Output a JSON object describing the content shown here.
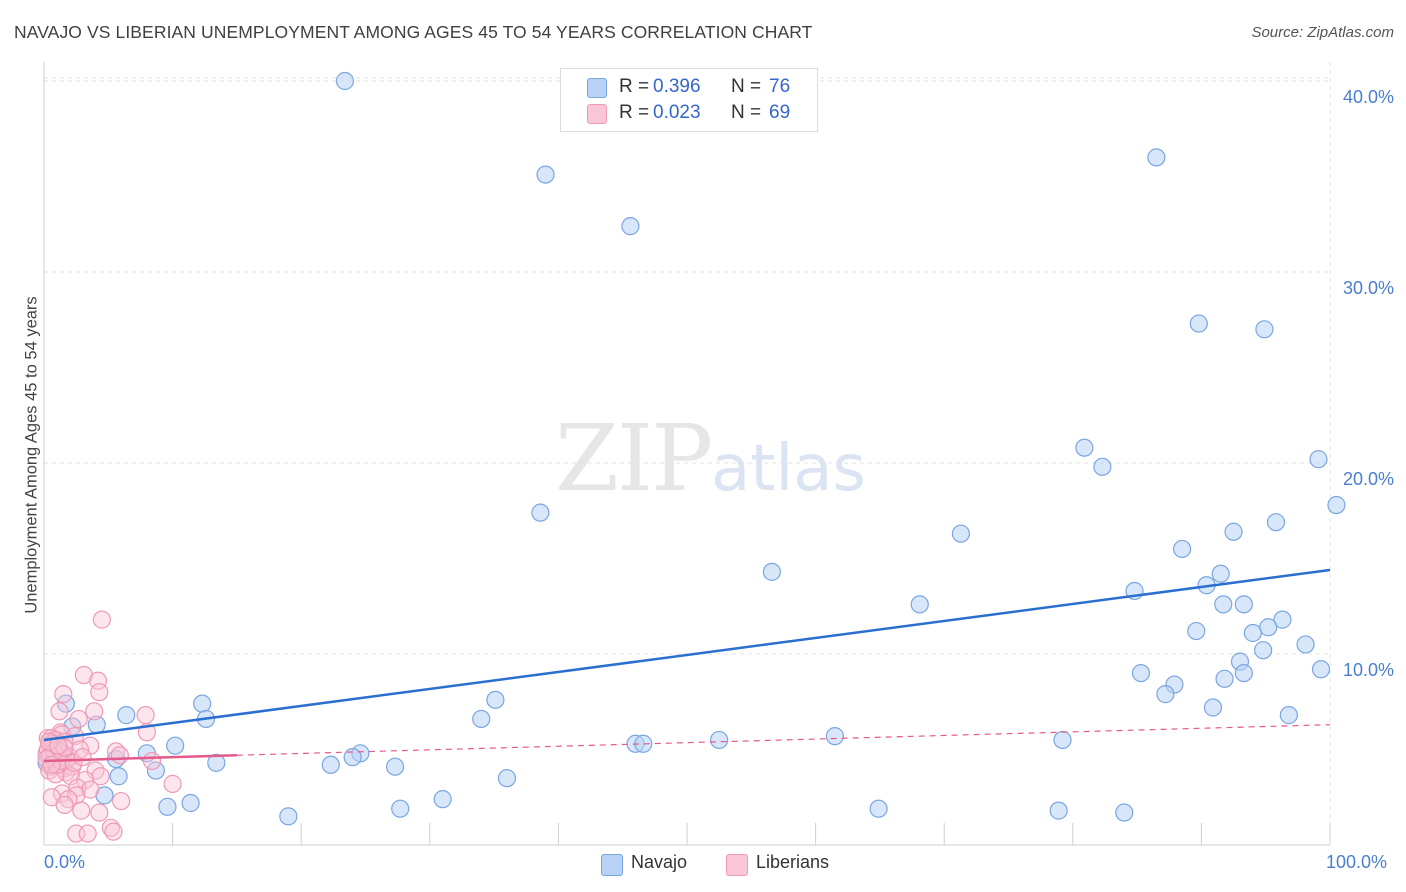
{
  "header": {
    "title": "NAVAJO VS LIBERIAN UNEMPLOYMENT AMONG AGES 45 TO 54 YEARS CORRELATION CHART",
    "source": "Source: ZipAtlas.com"
  },
  "watermark": {
    "zip": "ZIP",
    "atlas": "atlas"
  },
  "colors": {
    "navajo_fill": "#b8d2f5",
    "navajo_stroke": "#7aa6e0",
    "navajo_line": "#2a6fd0",
    "liberian_fill": "#f8c6d6",
    "liberian_stroke": "#ee9ab6",
    "liberian_line": "#e45a8a",
    "tick": "#4a7ed0"
  },
  "legend": {
    "rows": [
      {
        "r_label": "R =",
        "r_value": "0.396",
        "n_label": "N =",
        "n_value": "76"
      },
      {
        "r_label": "R =",
        "r_value": "0.023",
        "n_label": "N =",
        "n_value": "69"
      }
    ]
  },
  "bottom_legend": {
    "navajo": "Navajo",
    "liberians": "Liberians"
  },
  "axes": {
    "y_label": "Unemployment Among Ages 45 to 54 years",
    "x_min_label": "0.0%",
    "x_max_label": "100.0%",
    "y_ticks": [
      "10.0%",
      "20.0%",
      "30.0%",
      "40.0%"
    ]
  },
  "chart_data": {
    "type": "scatter",
    "title": "NAVAJO VS LIBERIAN UNEMPLOYMENT AMONG AGES 45 TO 54 YEARS CORRELATION CHART",
    "xlabel": "",
    "ylabel": "Unemployment Among Ages 45 to 54 years",
    "xlim": [
      0,
      100
    ],
    "ylim": [
      0,
      41
    ],
    "y_ticks": [
      10,
      20,
      30,
      40
    ],
    "grid": true,
    "series": [
      {
        "name": "Navajo",
        "r": 0.396,
        "n": 76,
        "trend": {
          "x": [
            0,
            100
          ],
          "y": [
            5.5,
            14.4
          ]
        },
        "points": [
          [
            23.4,
            40.0
          ],
          [
            39.0,
            35.1
          ],
          [
            45.6,
            32.4
          ],
          [
            86.5,
            36.0
          ],
          [
            89.8,
            27.3
          ],
          [
            94.9,
            27.0
          ],
          [
            80.9,
            20.8
          ],
          [
            82.3,
            19.8
          ],
          [
            99.1,
            20.2
          ],
          [
            100.5,
            17.8
          ],
          [
            38.6,
            17.4
          ],
          [
            71.3,
            16.3
          ],
          [
            95.8,
            16.9
          ],
          [
            88.5,
            15.5
          ],
          [
            92.5,
            16.4
          ],
          [
            56.6,
            14.3
          ],
          [
            91.5,
            14.2
          ],
          [
            84.8,
            13.3
          ],
          [
            90.4,
            13.6
          ],
          [
            93.3,
            12.6
          ],
          [
            91.7,
            12.6
          ],
          [
            68.1,
            12.6
          ],
          [
            96.3,
            11.8
          ],
          [
            95.2,
            11.4
          ],
          [
            89.6,
            11.2
          ],
          [
            94.0,
            11.1
          ],
          [
            98.1,
            10.5
          ],
          [
            94.8,
            10.2
          ],
          [
            93.0,
            9.6
          ],
          [
            99.3,
            9.2
          ],
          [
            85.3,
            9.0
          ],
          [
            93.3,
            9.0
          ],
          [
            91.8,
            8.7
          ],
          [
            87.9,
            8.4
          ],
          [
            87.2,
            7.9
          ],
          [
            90.9,
            7.2
          ],
          [
            96.8,
            6.8
          ],
          [
            1.7,
            7.4
          ],
          [
            12.3,
            7.4
          ],
          [
            35.1,
            7.6
          ],
          [
            6.4,
            6.8
          ],
          [
            12.6,
            6.6
          ],
          [
            34.0,
            6.6
          ],
          [
            4.1,
            6.3
          ],
          [
            2.2,
            6.2
          ],
          [
            0.8,
            5.5
          ],
          [
            1.0,
            5.1
          ],
          [
            10.2,
            5.2
          ],
          [
            61.5,
            5.7
          ],
          [
            52.5,
            5.5
          ],
          [
            46.0,
            5.3
          ],
          [
            46.6,
            5.3
          ],
          [
            79.2,
            5.5
          ],
          [
            8.0,
            4.8
          ],
          [
            24.6,
            4.8
          ],
          [
            24.0,
            4.6
          ],
          [
            1.5,
            4.8
          ],
          [
            0.4,
            4.6
          ],
          [
            0.6,
            4.4
          ],
          [
            5.6,
            4.5
          ],
          [
            13.4,
            4.3
          ],
          [
            22.3,
            4.2
          ],
          [
            27.3,
            4.1
          ],
          [
            8.7,
            3.9
          ],
          [
            5.8,
            3.6
          ],
          [
            36.0,
            3.5
          ],
          [
            4.7,
            2.6
          ],
          [
            31.0,
            2.4
          ],
          [
            11.4,
            2.2
          ],
          [
            9.6,
            2.0
          ],
          [
            27.7,
            1.9
          ],
          [
            64.9,
            1.9
          ],
          [
            19.0,
            1.5
          ],
          [
            78.9,
            1.8
          ],
          [
            84.0,
            1.7
          ],
          [
            0.2,
            4.3
          ]
        ]
      },
      {
        "name": "Liberians",
        "r": 0.023,
        "n": 69,
        "trend": {
          "x": [
            0,
            15
          ],
          "y": [
            4.4,
            4.7
          ],
          "extended": {
            "x": [
              15,
              100
            ],
            "y": [
              4.7,
              6.3
            ]
          }
        },
        "points": [
          [
            4.5,
            11.8
          ],
          [
            3.1,
            8.9
          ],
          [
            4.2,
            8.6
          ],
          [
            4.3,
            8.0
          ],
          [
            1.5,
            7.9
          ],
          [
            1.2,
            7.0
          ],
          [
            3.9,
            7.0
          ],
          [
            7.9,
            6.8
          ],
          [
            2.7,
            6.6
          ],
          [
            8.0,
            5.9
          ],
          [
            1.3,
            5.9
          ],
          [
            1.4,
            5.8
          ],
          [
            2.4,
            5.7
          ],
          [
            0.3,
            5.6
          ],
          [
            0.6,
            5.6
          ],
          [
            0.9,
            5.5
          ],
          [
            1.6,
            5.4
          ],
          [
            0.4,
            5.2
          ],
          [
            0.8,
            5.0
          ],
          [
            3.6,
            5.2
          ],
          [
            5.6,
            4.9
          ],
          [
            5.9,
            4.7
          ],
          [
            0.9,
            4.6
          ],
          [
            0.7,
            4.4
          ],
          [
            2.0,
            4.6
          ],
          [
            1.1,
            4.3
          ],
          [
            8.4,
            4.4
          ],
          [
            0.5,
            4.1
          ],
          [
            1.5,
            4.0
          ],
          [
            2.2,
            4.1
          ],
          [
            4.0,
            3.9
          ],
          [
            0.4,
            3.9
          ],
          [
            1.7,
            3.8
          ],
          [
            2.1,
            3.6
          ],
          [
            4.4,
            3.6
          ],
          [
            0.9,
            3.7
          ],
          [
            3.2,
            3.4
          ],
          [
            10.0,
            3.2
          ],
          [
            2.6,
            3.0
          ],
          [
            3.6,
            2.9
          ],
          [
            1.4,
            2.7
          ],
          [
            2.5,
            2.6
          ],
          [
            0.6,
            2.5
          ],
          [
            1.9,
            2.4
          ],
          [
            6.0,
            2.3
          ],
          [
            1.6,
            2.1
          ],
          [
            2.9,
            1.8
          ],
          [
            4.3,
            1.7
          ],
          [
            5.2,
            0.9
          ],
          [
            5.4,
            0.7
          ],
          [
            2.5,
            0.6
          ],
          [
            3.4,
            0.6
          ],
          [
            0.2,
            4.8
          ],
          [
            0.3,
            5.0
          ],
          [
            0.7,
            5.3
          ],
          [
            1.2,
            4.9
          ],
          [
            1.0,
            4.2
          ],
          [
            1.8,
            4.5
          ],
          [
            2.8,
            5.0
          ],
          [
            0.5,
            4.7
          ],
          [
            1.3,
            4.4
          ],
          [
            0.8,
            4.9
          ],
          [
            0.2,
            4.5
          ],
          [
            1.6,
            5.1
          ],
          [
            2.3,
            4.3
          ],
          [
            0.4,
            5.4
          ],
          [
            3.0,
            4.6
          ],
          [
            1.1,
            5.2
          ],
          [
            0.6,
            4.2
          ]
        ]
      }
    ]
  }
}
